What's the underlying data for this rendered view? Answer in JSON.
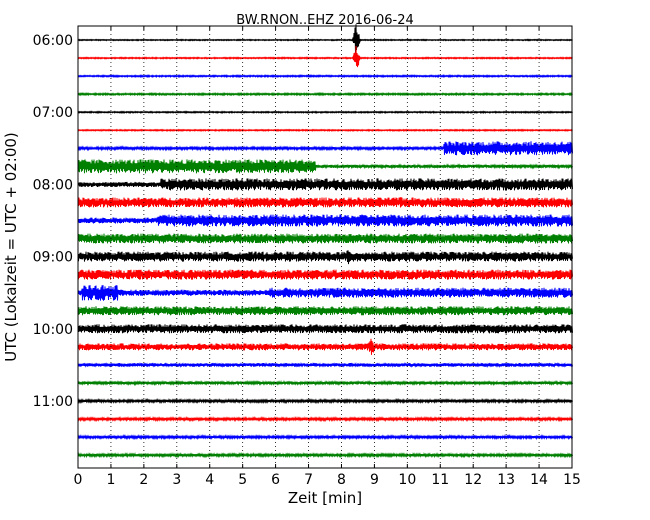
{
  "chart_data": {
    "type": "line",
    "title": "BW.RNON..EHZ 2016-06-24",
    "xlabel": "Zeit  [min]",
    "ylabel": "UTC (Lokalzeit = UTC + 02:00)",
    "xlim": [
      0,
      15
    ],
    "x_ticks": [
      "0",
      "1",
      "2",
      "3",
      "4",
      "5",
      "6",
      "7",
      "8",
      "9",
      "10",
      "11",
      "12",
      "13",
      "14",
      "15"
    ],
    "y_ticks": [
      "06:00",
      "07:00",
      "08:00",
      "09:00",
      "10:00",
      "11:00"
    ],
    "grid": "vertical dotted",
    "series_colors": [
      "#000000",
      "#ff0000",
      "#0000ff",
      "#008000"
    ],
    "traces": [
      {
        "time": "06:00",
        "color": "#000000",
        "level": 0.5,
        "events": [
          {
            "x": 8.45,
            "amp": 20
          }
        ]
      },
      {
        "time": "06:15",
        "color": "#ff0000",
        "level": 0.6,
        "events": [
          {
            "x": 8.45,
            "amp": 14
          }
        ]
      },
      {
        "time": "06:30",
        "color": "#0000ff",
        "level": 0.7,
        "events": []
      },
      {
        "time": "06:45",
        "color": "#008000",
        "level": 0.8,
        "events": []
      },
      {
        "time": "07:00",
        "color": "#000000",
        "level": 0.6,
        "events": []
      },
      {
        "time": "07:15",
        "color": "#ff0000",
        "level": 0.6,
        "events": []
      },
      {
        "time": "07:30",
        "color": "#0000ff",
        "level": 1.2,
        "segments": [
          {
            "from": 11.1,
            "to": 15,
            "level": 7
          }
        ],
        "events": []
      },
      {
        "time": "07:45",
        "color": "#008000",
        "level": 1.5,
        "segments": [
          {
            "from": 0,
            "to": 7.2,
            "level": 7
          }
        ],
        "events": []
      },
      {
        "time": "08:00",
        "color": "#000000",
        "level": 2.5,
        "segments": [
          {
            "from": 2.5,
            "to": 15,
            "level": 6
          }
        ],
        "events": []
      },
      {
        "time": "08:15",
        "color": "#ff0000",
        "level": 5,
        "events": [
          {
            "x": 9.8,
            "amp": 8
          }
        ]
      },
      {
        "time": "08:30",
        "color": "#0000ff",
        "level": 3,
        "segments": [
          {
            "from": 2.4,
            "to": 15,
            "level": 6
          }
        ],
        "events": []
      },
      {
        "time": "08:45",
        "color": "#008000",
        "level": 5,
        "events": []
      },
      {
        "time": "09:00",
        "color": "#000000",
        "level": 5,
        "events": [
          {
            "x": 8.2,
            "amp": 8
          }
        ]
      },
      {
        "time": "09:15",
        "color": "#ff0000",
        "level": 5,
        "events": []
      },
      {
        "time": "09:30",
        "color": "#0000ff",
        "level": 3,
        "segments": [
          {
            "from": 0.1,
            "to": 1.2,
            "level": 8
          },
          {
            "from": 5.8,
            "to": 15,
            "level": 5
          }
        ],
        "events": []
      },
      {
        "time": "09:45",
        "color": "#008000",
        "level": 4.5,
        "events": []
      },
      {
        "time": "10:00",
        "color": "#000000",
        "level": 4.5,
        "events": []
      },
      {
        "time": "10:15",
        "color": "#ff0000",
        "level": 3.5,
        "events": [
          {
            "x": 8.9,
            "amp": 12
          }
        ]
      },
      {
        "time": "10:30",
        "color": "#0000ff",
        "level": 1.8,
        "events": []
      },
      {
        "time": "10:45",
        "color": "#008000",
        "level": 1.5,
        "events": []
      },
      {
        "time": "11:00",
        "color": "#000000",
        "level": 1.2,
        "events": []
      },
      {
        "time": "11:15",
        "color": "#ff0000",
        "level": 1.2,
        "events": []
      },
      {
        "time": "11:30",
        "color": "#0000ff",
        "level": 1.2,
        "events": []
      },
      {
        "time": "11:45",
        "color": "#008000",
        "level": 1.2,
        "events": []
      }
    ]
  }
}
